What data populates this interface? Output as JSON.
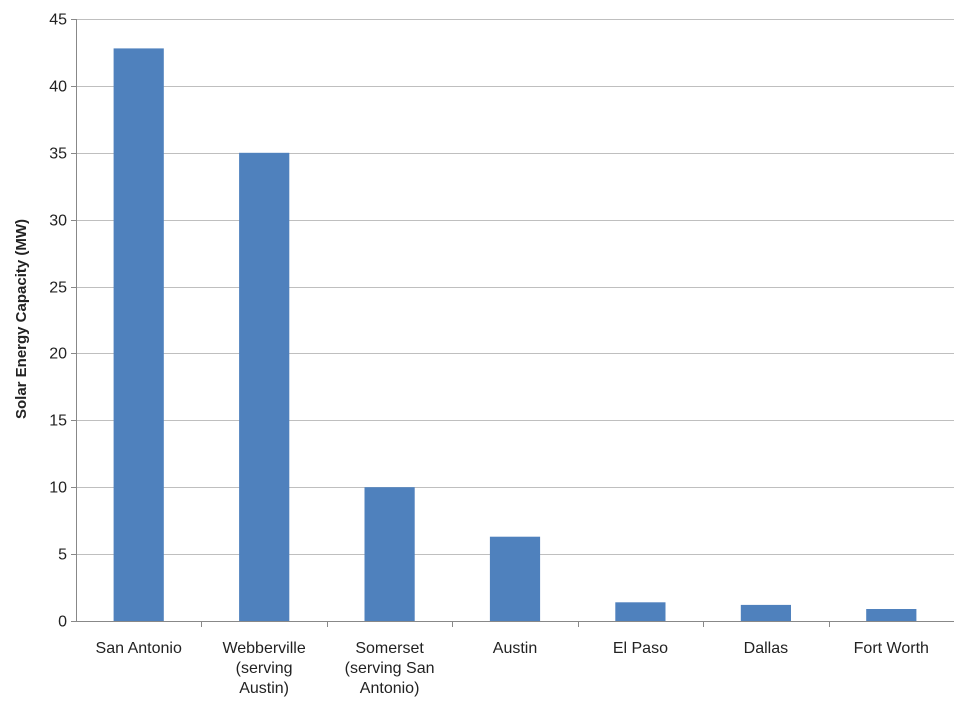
{
  "chart_data": {
    "type": "bar",
    "title": "",
    "xlabel": "",
    "ylabel": "Solar Energy Capacity (MW)",
    "ylim": [
      0,
      45
    ],
    "ytick_step": 5,
    "yticks": [
      "0",
      "5",
      "10",
      "15",
      "20",
      "25",
      "30",
      "35",
      "40",
      "45"
    ],
    "grid": true,
    "legend": "none",
    "categories": [
      [
        "San Antonio"
      ],
      [
        "Webberville",
        "(serving",
        "Austin)"
      ],
      [
        "Somerset",
        "(serving San",
        "Antonio)"
      ],
      [
        "Austin"
      ],
      [
        "El Paso"
      ],
      [
        "Dallas"
      ],
      [
        "Fort Worth"
      ]
    ],
    "values": [
      42.8,
      35.0,
      10.0,
      6.3,
      1.4,
      1.2,
      0.9
    ],
    "bar_color": "#4f81bd",
    "grid_color": "#bfbfbf",
    "axis_color": "#888888"
  }
}
